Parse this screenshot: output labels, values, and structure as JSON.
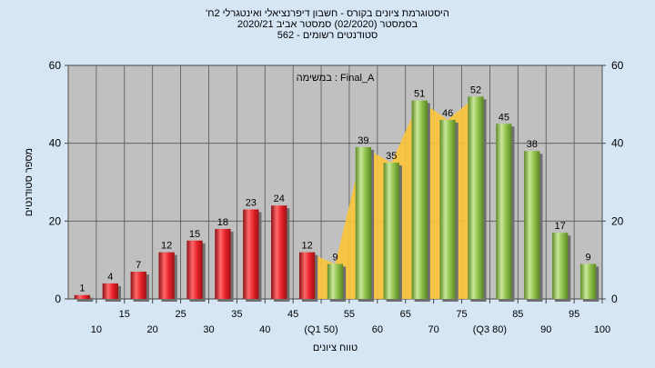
{
  "header": {
    "line1": "'היסטוגרמת ציונים בקורס - חשבון דיפרנציאלי ואינטגרלי 2ח",
    "line2": "בסמסטר  (02/2020)  סמסטר אביב 2020/21",
    "line3": "סטודנטים רשומים - 562"
  },
  "chart_data": {
    "type": "bar",
    "title": "'היסטוגרמת ציונים בקורס - חשבון דיפרנציאלי ואינטגרלי 2ח",
    "annotation": "במשימה : Final_A",
    "xlabel": "טווח ציונים",
    "ylabel": "מספר סטודנטים",
    "ylim": [
      0,
      60
    ],
    "y_ticks": [
      0,
      20,
      40,
      60
    ],
    "grid": true,
    "categories": [
      "10",
      "15",
      "20",
      "25",
      "30",
      "35",
      "40",
      "45",
      "50",
      "55",
      "60",
      "65",
      "70",
      "75",
      "80",
      "85",
      "90",
      "95",
      "100"
    ],
    "x_tick_labels": [
      "10",
      "15",
      "20",
      "25",
      "30",
      "35",
      "40",
      "45",
      "(Q1 50)",
      "55",
      "60",
      "65",
      "70",
      "75",
      "(Q3 80)",
      "85",
      "90",
      "95",
      "100"
    ],
    "values": [
      1,
      4,
      7,
      12,
      15,
      18,
      23,
      24,
      12,
      9,
      39,
      35,
      51,
      46,
      52,
      45,
      38,
      17,
      9
    ],
    "colors": {
      "fail": "#e8232a",
      "pass": "#8dc04a",
      "iqr_band": "#fcc43a",
      "plot_bg": "#c0c0c0",
      "grid": "#555555"
    },
    "pass_from_category": "55",
    "iqr_band": {
      "start": "50",
      "end": "80"
    }
  }
}
